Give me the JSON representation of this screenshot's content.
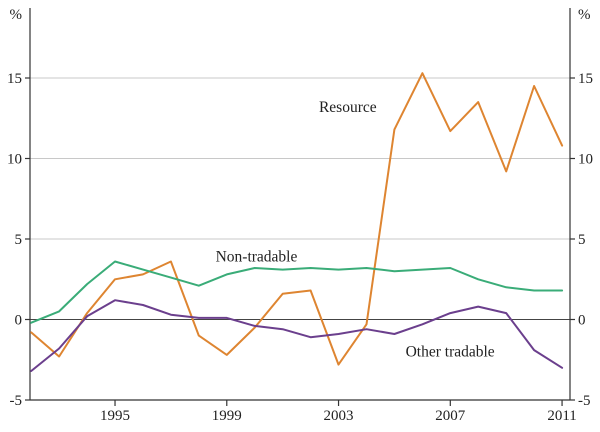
{
  "chart_data": {
    "type": "line",
    "title": "",
    "unit_label": "%",
    "x_label": "",
    "y_label": "",
    "x": [
      1992,
      1993,
      1994,
      1995,
      1996,
      1997,
      1998,
      1999,
      2000,
      2001,
      2002,
      2003,
      2004,
      2005,
      2006,
      2007,
      2008,
      2009,
      2010,
      2011
    ],
    "x_ticks": [
      1995,
      1999,
      2003,
      2007,
      2011
    ],
    "y_ticks": [
      -5,
      0,
      5,
      10,
      15
    ],
    "ylim": [
      -5,
      19.3
    ],
    "xlim": [
      1991.95,
      2011.3
    ],
    "grid": "horizontal-light-above-zero, solid zero line",
    "legend_position": "inline-labels",
    "colors": {
      "axis": "#333333",
      "gridline": "#c8c8c8",
      "zero_line": "#444444"
    },
    "series": [
      {
        "name": "Resource",
        "color": "#DE8531",
        "values": [
          -0.8,
          -2.3,
          0.4,
          2.5,
          2.8,
          3.6,
          -1.0,
          -2.2,
          -0.5,
          1.6,
          1.8,
          -2.8,
          -0.3,
          11.8,
          15.3,
          11.7,
          13.5,
          9.2,
          14.5,
          10.8
        ],
        "label_pos": {
          "x": 2002.3,
          "y": 12.9
        }
      },
      {
        "name": "Non-tradable",
        "color": "#3AAC78",
        "values": [
          -0.2,
          0.5,
          2.2,
          3.6,
          3.1,
          2.6,
          2.1,
          2.8,
          3.2,
          3.1,
          3.2,
          3.1,
          3.2,
          3.0,
          3.1,
          3.2,
          2.5,
          2.0,
          1.8,
          1.8
        ],
        "label_pos": {
          "x": 1998.6,
          "y": 3.6
        }
      },
      {
        "name": "Other tradable",
        "color": "#6B3F8D",
        "values": [
          -3.2,
          -1.8,
          0.2,
          1.2,
          0.9,
          0.3,
          0.1,
          0.1,
          -0.4,
          -0.6,
          -1.1,
          -0.9,
          -0.6,
          -0.9,
          -0.3,
          0.4,
          0.8,
          0.4,
          -1.9,
          -3.0
        ],
        "label_pos": {
          "x": 2005.4,
          "y": -2.3
        }
      }
    ]
  }
}
